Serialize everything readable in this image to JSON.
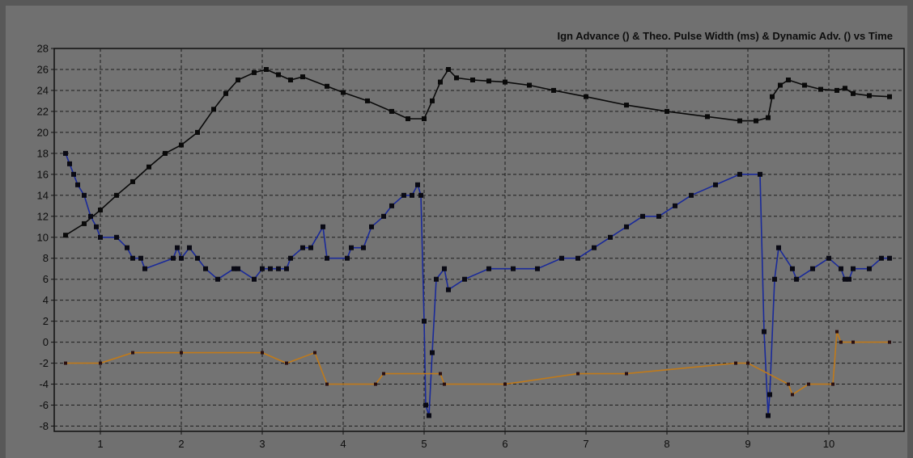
{
  "chart_data": {
    "type": "line",
    "title": "Ign Advance () & Theo. Pulse Width (ms) & Dynamic Adv. () vs Time",
    "xlabel": "",
    "ylabel": "",
    "xlim": [
      0.43,
      10.93
    ],
    "ylim": [
      -8.5,
      28
    ],
    "x_ticks": [
      1,
      2,
      3,
      4,
      5,
      6,
      7,
      8,
      9,
      10
    ],
    "y_ticks": [
      -8,
      -6,
      -4,
      -2,
      0,
      2,
      4,
      6,
      8,
      10,
      12,
      14,
      16,
      18,
      20,
      22,
      24,
      26,
      28
    ],
    "grid": true,
    "colors": {
      "plot_bg": "#737373",
      "grid": "#1e1e1e",
      "marker": "#0a0a0a",
      "blue": "#1a2a9a",
      "orange": "#c07a1a"
    },
    "series": [
      {
        "color": "#0a0a0a",
        "x": [
          0.57,
          0.8,
          1.0,
          1.2,
          1.4,
          1.6,
          1.8,
          2.0,
          2.2,
          2.4,
          2.55,
          2.7,
          2.9,
          3.05,
          3.2,
          3.35,
          3.5,
          3.8,
          4.0,
          4.3,
          4.6,
          4.8,
          5.0,
          5.1,
          5.2,
          5.3,
          5.4,
          5.6,
          5.8,
          6.0,
          6.3,
          6.6,
          7.0,
          7.5,
          8.0,
          8.5,
          8.9,
          9.1,
          9.25,
          9.3,
          9.4,
          9.5,
          9.7,
          9.9,
          10.1,
          10.2,
          10.3,
          10.5,
          10.75
        ],
        "y": [
          10.2,
          11.3,
          12.6,
          14.0,
          15.3,
          16.7,
          18.0,
          18.8,
          20.0,
          22.2,
          23.7,
          25.0,
          25.7,
          26.0,
          25.5,
          25.0,
          25.3,
          24.4,
          23.8,
          23.0,
          22.0,
          21.3,
          21.3,
          23.0,
          24.8,
          26.0,
          25.2,
          25.0,
          24.9,
          24.8,
          24.5,
          24.0,
          23.4,
          22.6,
          22.0,
          21.5,
          21.1,
          21.1,
          21.4,
          23.4,
          24.5,
          25.0,
          24.5,
          24.1,
          24.0,
          24.2,
          23.7,
          23.5,
          23.4
        ]
      },
      {
        "color": "#1a2a9a",
        "x": [
          0.57,
          0.62,
          0.67,
          0.72,
          0.8,
          0.88,
          0.95,
          1.0,
          1.2,
          1.33,
          1.4,
          1.5,
          1.55,
          1.9,
          1.95,
          2.0,
          2.1,
          2.2,
          2.3,
          2.45,
          2.65,
          2.7,
          2.9,
          3.0,
          3.1,
          3.2,
          3.3,
          3.35,
          3.5,
          3.6,
          3.75,
          3.8,
          4.05,
          4.1,
          4.25,
          4.35,
          4.5,
          4.6,
          4.75,
          4.85,
          4.92,
          4.96,
          5.0,
          5.02,
          5.06,
          5.1,
          5.15,
          5.25,
          5.3,
          5.5,
          5.8,
          6.1,
          6.4,
          6.7,
          6.9,
          7.1,
          7.3,
          7.5,
          7.7,
          7.9,
          8.1,
          8.3,
          8.6,
          8.9,
          9.15,
          9.2,
          9.25,
          9.27,
          9.33,
          9.38,
          9.55,
          9.6,
          9.8,
          10.0,
          10.15,
          10.2,
          10.25,
          10.3,
          10.5,
          10.65,
          10.75
        ],
        "y": [
          18,
          17,
          16,
          15,
          14,
          12,
          11,
          10,
          10,
          9,
          8,
          8,
          7,
          8,
          9,
          8,
          9,
          8,
          7,
          6,
          7,
          7,
          6,
          7,
          7,
          7,
          7,
          8,
          9,
          9,
          11,
          8,
          8,
          9,
          9,
          11,
          12,
          13,
          14,
          14,
          15,
          14,
          2,
          -6,
          -7,
          -1,
          6,
          7,
          5,
          6,
          7,
          7,
          7,
          8,
          8,
          9,
          10,
          11,
          12,
          12,
          13,
          14,
          15,
          16,
          16,
          1,
          -7,
          -5,
          6,
          9,
          7,
          6,
          7,
          8,
          7,
          6,
          6,
          7,
          7,
          8,
          8
        ]
      },
      {
        "color": "#c07a1a",
        "x": [
          0.57,
          1.0,
          1.4,
          2.0,
          3.0,
          3.3,
          3.65,
          3.8,
          4.4,
          4.5,
          5.2,
          5.25,
          6.0,
          6.9,
          7.5,
          8.85,
          9.0,
          9.5,
          9.55,
          9.75,
          10.05,
          10.1,
          10.15,
          10.3,
          10.75
        ],
        "y": [
          -2,
          -2,
          -1,
          -1,
          -1,
          -2,
          -1,
          -4,
          -4,
          -3,
          -3,
          -4,
          -4,
          -3,
          -3,
          -2,
          -2,
          -4,
          -5,
          -4,
          -4,
          1,
          0,
          0,
          0
        ]
      }
    ]
  }
}
